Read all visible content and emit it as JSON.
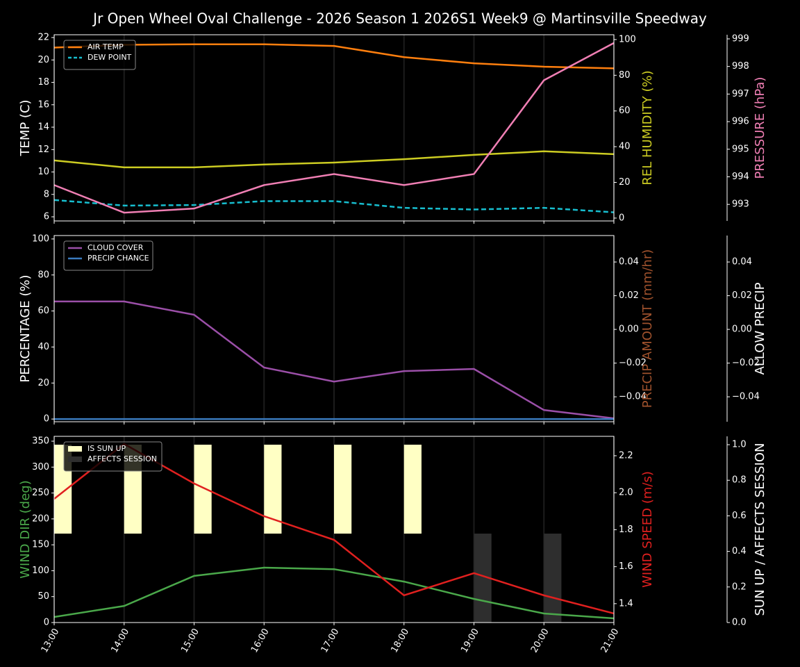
{
  "title": "Jr Open Wheel Oval Challenge - 2026 Season 1 2026S1 Week9 @ Martinsville Speedway",
  "chart_data": [
    {
      "type": "line",
      "categories": [
        "13:00",
        "14:00",
        "15:00",
        "16:00",
        "17:00",
        "18:00",
        "19:00",
        "20:00",
        "21:00"
      ],
      "ylabel": "TEMP (C)",
      "ylim": [
        5.63,
        22.25
      ],
      "yticks": [
        6,
        8,
        10,
        12,
        14,
        16,
        18,
        20,
        22
      ],
      "y2label": "REL HUMIDITY (%)",
      "y2lim": [
        -1.6,
        102.7
      ],
      "y2ticks": [
        0,
        20,
        40,
        60,
        80,
        100
      ],
      "y3label": "PRESSURE (hPa)",
      "y3lim": [
        992.4,
        999.15
      ],
      "y3ticks": [
        993,
        994,
        995,
        996,
        997,
        998,
        999
      ],
      "legend": "upper left",
      "series": [
        {
          "name": "AIR TEMP",
          "color": "#ff7f0e",
          "values": [
            21.1,
            21.35,
            21.4,
            21.4,
            21.25,
            20.25,
            19.7,
            19.4,
            19.25
          ]
        },
        {
          "name": "DEW POINT",
          "color": "#17becf",
          "dash": true,
          "values": [
            7.5,
            7.0,
            7.05,
            7.4,
            7.4,
            6.8,
            6.65,
            6.8,
            6.4
          ]
        },
        {
          "color": "#cccc22",
          "axis": "y2",
          "values": [
            32.3,
            28.4,
            28.4,
            30.0,
            31.1,
            33.0,
            35.4,
            37.4,
            35.8
          ]
        },
        {
          "color": "#f07fb4",
          "axis": "y3",
          "values": [
            993.7,
            992.7,
            992.85,
            993.7,
            994.1,
            993.7,
            994.1,
            997.5,
            998.85
          ]
        }
      ]
    },
    {
      "type": "line",
      "categories": [
        "13:00",
        "14:00",
        "15:00",
        "16:00",
        "17:00",
        "18:00",
        "19:00",
        "20:00",
        "21:00"
      ],
      "ylabel": "PERCENTAGE (%)",
      "ylim": [
        -1.5,
        101.9
      ],
      "yticks": [
        0,
        20,
        40,
        60,
        80,
        100
      ],
      "y2label": "PRECIP AMOUNT (mm/hr)",
      "y2label_color": "#a0522d",
      "y2lim": [
        -0.0548,
        0.0557
      ],
      "y2ticks": [
        {
          "value": -0.04,
          "label": "−0.04"
        },
        {
          "value": -0.02,
          "label": "−0.02"
        },
        {
          "value": 0,
          "label": "0.00"
        },
        {
          "value": 0.02,
          "label": "0.02"
        },
        {
          "value": 0.04,
          "label": "0.04"
        }
      ],
      "y3label": "ALLOW PRECIP",
      "y3lim": [
        -0.0548,
        0.0557
      ],
      "y3ticks": [
        {
          "value": -0.04,
          "label": "−0.04"
        },
        {
          "value": -0.02,
          "label": "−0.02"
        },
        {
          "value": 0,
          "label": "0.00"
        },
        {
          "value": 0.02,
          "label": "0.02"
        },
        {
          "value": 0.04,
          "label": "0.04"
        }
      ],
      "legend": "upper left",
      "series": [
        {
          "name": "CLOUD COVER",
          "color": "#9b4fa8",
          "values": [
            65.3,
            65.3,
            57.9,
            28.6,
            20.8,
            26.6,
            27.8,
            5.0,
            0.4
          ]
        },
        {
          "name": "PRECIP CHANCE",
          "color": "#3a7bbf",
          "values": [
            0,
            0,
            0,
            0,
            0,
            0,
            0,
            0,
            0
          ]
        }
      ]
    },
    {
      "type": "line",
      "categories": [
        "13:00",
        "14:00",
        "15:00",
        "16:00",
        "17:00",
        "18:00",
        "19:00",
        "20:00",
        "21:00"
      ],
      "ylabel": "WIND DIR (deg)",
      "ylabel_color": "#4aa84a",
      "ylim": [
        0,
        359.4
      ],
      "yticks": [
        0,
        50,
        100,
        150,
        200,
        250,
        300,
        350
      ],
      "y2label": "WIND SPEED (m/s)",
      "y2label_color": "#e0201f",
      "y2lim": [
        1.298,
        2.305
      ],
      "y2ticks": [
        1.4,
        1.6,
        1.8,
        {
          "value": 2,
          "label": "2.0"
        },
        2.2
      ],
      "y3label": "SUN UP / AFFECTS SESSION",
      "y3lim": [
        0,
        1.047
      ],
      "y3ticks": [
        {
          "value": 0,
          "label": "0.0"
        },
        0.2,
        0.4,
        0.6,
        0.8,
        {
          "value": 1,
          "label": "1.0"
        }
      ],
      "legend": "upper left",
      "series": [
        {
          "name": "IS SUN UP",
          "type": "bar",
          "color": "#ffffc4",
          "axis": "y3",
          "bottom": 0.5,
          "values": [
            0.5,
            0.5,
            0.5,
            0.5,
            0.5,
            0.5,
            0,
            0,
            0
          ]
        },
        {
          "name": "AFFECTS SESSION",
          "type": "bar",
          "color": "#2e2e2e",
          "axis": "y3",
          "values": [
            0,
            0,
            0,
            0,
            0,
            0,
            0.5,
            0.5,
            0
          ]
        },
        {
          "color": "#4aa84a",
          "values": [
            10.7,
            32,
            90,
            106,
            103,
            79,
            45.6,
            17.4,
            8
          ]
        },
        {
          "color": "#e0201f",
          "axis": "y2",
          "values": [
            1.967,
            2.264,
            2.05,
            1.873,
            1.745,
            1.445,
            1.565,
            1.445,
            1.347
          ]
        }
      ]
    }
  ]
}
